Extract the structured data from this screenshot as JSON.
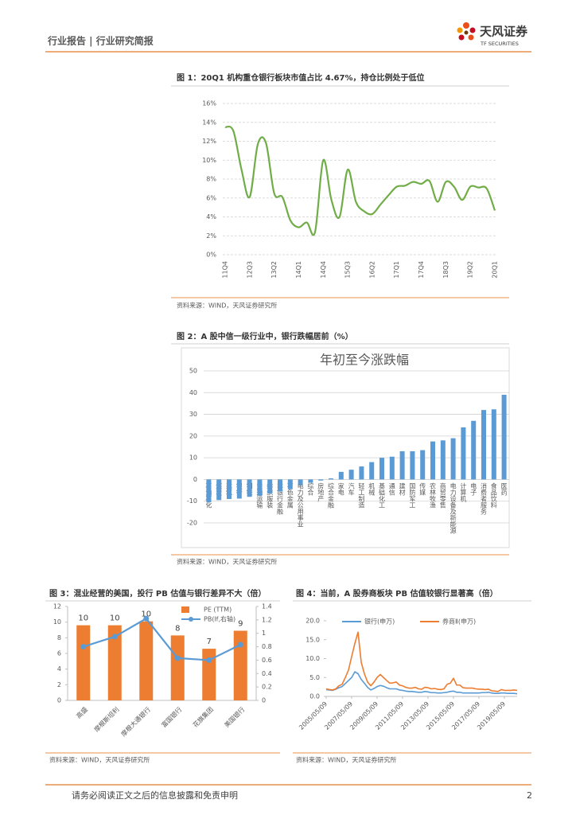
{
  "header": {
    "left": "行业报告 | 行业研究简报",
    "logo": "天风证券",
    "logo_en": "TF SECURITIES"
  },
  "chart_data": [
    {
      "type": "line",
      "caption": "图 1：20Q1 机构重仓银行板块市值占比 4.67%，持仓比例处于低位",
      "source": "资料来源：WIND，天风证券研究所",
      "categories": [
        "11Q4",
        null,
        null,
        "12Q3",
        null,
        null,
        "13Q2",
        null,
        null,
        "14Q1",
        null,
        null,
        "14Q4",
        null,
        null,
        "15Q3",
        null,
        null,
        "16Q2",
        null,
        null,
        "17Q1",
        null,
        null,
        "17Q4",
        null,
        null,
        "18Q3",
        null,
        null,
        "19Q2",
        null,
        null,
        "20Q1"
      ],
      "values": [
        13.5,
        13.1,
        9.0,
        6.1,
        11.7,
        11.8,
        6.5,
        6.1,
        3.6,
        2.9,
        3.4,
        2.4,
        10.0,
        5.8,
        4.0,
        9.0,
        5.6,
        4.6,
        4.3,
        5.3,
        6.3,
        7.2,
        7.3,
        7.7,
        7.5,
        7.8,
        5.6,
        7.7,
        7.2,
        5.8,
        7.2,
        7.1,
        7.0,
        4.67
      ],
      "color": "#70ad47",
      "ylim": [
        0,
        16
      ],
      "yticks": [
        {
          "value": 0,
          "label": "0%"
        },
        {
          "value": 2,
          "label": "2%"
        },
        {
          "value": 4,
          "label": "4%"
        },
        {
          "value": 6,
          "label": "6%"
        },
        {
          "value": 8,
          "label": "8%"
        },
        {
          "value": 10,
          "label": "10%"
        },
        {
          "value": 12,
          "label": "12%"
        },
        {
          "value": 14,
          "label": "14%"
        },
        {
          "value": 16,
          "label": "16%"
        }
      ],
      "grid": true
    },
    {
      "type": "bar",
      "caption": "图 2：A 股中信一级行业中，银行跌幅居前（%）",
      "source": "资料来源：WIND，天风证券研究所",
      "title": "年初至今涨跌幅",
      "categories": [
        "石油石化",
        "煤炭",
        "建筑",
        "银行",
        "钢铁",
        "交通运输",
        "纺织服装",
        "非银行金融",
        "有色金属",
        "电力及公用事业",
        "综合",
        "房地产",
        "综合金融",
        "家电",
        "汽车",
        "轻工制造",
        "机械",
        "基础化工",
        "通信",
        "建材",
        "国防军工",
        "传媒",
        "农林牧渔",
        "商贸零售",
        "电力设备及新能源",
        "计算机",
        "电子",
        "消费者服务",
        "食品饮料",
        "医药"
      ],
      "values": [
        -10.5,
        -9.5,
        -9.0,
        -8.8,
        -8.0,
        -7.5,
        -6.5,
        -5.5,
        -4.5,
        -2.5,
        -1.5,
        -0.5,
        0.5,
        3.5,
        4.5,
        6.0,
        8.0,
        10.0,
        10.5,
        13.0,
        13.0,
        13.5,
        17.5,
        18.0,
        19.0,
        24.0,
        27.0,
        32.0,
        32.3,
        39.0
      ],
      "color": "#5b9bd5",
      "ylim": [
        -20,
        50
      ],
      "yticks": [
        -20,
        -10,
        0,
        10,
        20,
        30,
        40,
        50
      ],
      "grid": true
    },
    {
      "type": "bar",
      "caption": "图 3：混业经营的美国，投行 PB 估值与银行差异不大（倍）",
      "source": "资料来源：WIND，天风证券研究所",
      "categories": [
        "高盛",
        "摩根斯坦利",
        "摩根大通银行",
        "富国银行",
        "花旗集团",
        "美国银行"
      ],
      "series": [
        {
          "name": "PE (TTM)",
          "color": "#ed7d31",
          "values": [
            9.6,
            9.6,
            10.1,
            8.3,
            6.6,
            8.9
          ],
          "value_labels": [
            "10",
            "10",
            "10",
            "8",
            "7",
            "9"
          ]
        },
        {
          "name": "PB(lf,右轴)",
          "color": "#5b9bd5",
          "values": [
            0.8,
            0.95,
            1.22,
            0.63,
            0.6,
            0.83
          ],
          "axis": "y2"
        }
      ],
      "ylim": [
        0,
        12
      ],
      "yticks": [
        0,
        2,
        4,
        6,
        8,
        10,
        12
      ],
      "y2lim": [
        0,
        1.4
      ],
      "y2ticks": [
        0,
        0.2,
        0.4,
        0.6,
        0.8,
        1,
        1.2,
        1.4
      ],
      "grid": false
    },
    {
      "type": "line",
      "caption": "图 4：当前，A 股券商板块 PB 估值较银行显著高（倍）",
      "source": "资料来源：WIND，天风证券研究所",
      "x": [
        "2005/05/09",
        "2005/08/09",
        "2005/11/09",
        "2006/02/09",
        "2006/05/09",
        "2006/08/09",
        "2006/11/09",
        "2007/02/09",
        "2007/05/09",
        "2007/08/09",
        "2007/11/09",
        "2008/02/09",
        "2008/05/09",
        "2008/08/09",
        "2008/11/09",
        "2009/02/09",
        "2009/05/09",
        "2009/08/09",
        "2009/11/09",
        "2010/02/09",
        "2010/05/09",
        "2010/08/09",
        "2010/11/09",
        "2011/02/09",
        "2011/05/09",
        "2011/08/09",
        "2011/11/09",
        "2012/02/09",
        "2012/05/09",
        "2012/08/09",
        "2012/11/09",
        "2013/02/09",
        "2013/05/09",
        "2013/08/09",
        "2013/11/09",
        "2014/02/09",
        "2014/05/09",
        "2014/08/09",
        "2014/11/09",
        "2015/02/09",
        "2015/05/09",
        "2015/08/09",
        "2015/11/09",
        "2016/02/09",
        "2016/05/09",
        "2016/08/09",
        "2016/11/09",
        "2017/02/09",
        "2017/05/09",
        "2017/08/09",
        "2017/11/09",
        "2018/02/09",
        "2018/05/09",
        "2018/08/09",
        "2018/11/09",
        "2019/02/09",
        "2019/05/09",
        "2019/08/09",
        "2019/11/09",
        "2020/02/09",
        "2020/05/09"
      ],
      "series": [
        {
          "name": "银行(申万)",
          "color": "#5b9bd5",
          "values": [
            1.8,
            1.7,
            1.6,
            1.9,
            2.3,
            2.6,
            3.4,
            4.2,
            5.0,
            6.5,
            6.0,
            4.5,
            3.5,
            2.4,
            1.7,
            2.1,
            2.6,
            2.9,
            2.7,
            2.3,
            2.0,
            2.0,
            2.0,
            1.7,
            1.6,
            1.4,
            1.3,
            1.3,
            1.2,
            1.1,
            1.1,
            1.3,
            1.2,
            1.0,
            1.0,
            0.9,
            0.9,
            1.0,
            1.1,
            1.3,
            1.4,
            1.1,
            1.1,
            0.9,
            0.9,
            0.9,
            0.9,
            0.9,
            0.9,
            1.0,
            1.0,
            1.1,
            0.9,
            0.8,
            0.8,
            0.9,
            0.9,
            0.8,
            0.8,
            0.8,
            0.7
          ]
        },
        {
          "name": "券商Ⅱ(申万)",
          "color": "#ed7d31",
          "values": [
            2.0,
            1.8,
            1.7,
            2.0,
            2.8,
            3.2,
            5.0,
            7.0,
            10.5,
            14.0,
            17.0,
            9.0,
            6.0,
            3.8,
            2.8,
            3.8,
            5.0,
            5.8,
            5.0,
            4.2,
            3.5,
            3.6,
            3.8,
            3.0,
            2.8,
            2.4,
            2.2,
            2.2,
            2.4,
            2.0,
            1.9,
            2.4,
            2.3,
            2.0,
            2.1,
            1.9,
            1.8,
            2.0,
            3.2,
            3.5,
            4.8,
            3.0,
            3.0,
            2.3,
            2.2,
            2.2,
            2.2,
            2.0,
            1.9,
            1.9,
            1.8,
            1.9,
            1.5,
            1.4,
            1.3,
            1.8,
            1.6,
            1.6,
            1.6,
            1.7,
            1.6
          ]
        }
      ],
      "xlim": [
        "2005/05/09",
        "2020/05/09"
      ],
      "xticks": [
        "2005/05/09",
        "2007/05/09",
        "2009/05/09",
        "2011/05/09",
        "2013/05/09",
        "2015/05/09",
        "2017/05/09",
        "2019/05/09"
      ],
      "ylim": [
        0,
        20
      ],
      "yticks": [
        {
          "value": 0,
          "label": "0.0"
        },
        {
          "value": 5,
          "label": "5.0"
        },
        {
          "value": 10,
          "label": "10.0"
        },
        {
          "value": 15,
          "label": "15.0"
        },
        {
          "value": 20,
          "label": "20.0"
        }
      ],
      "grid": false
    }
  ],
  "footer": {
    "disclaimer": "请务必阅读正文之后的信息披露和免责申明",
    "page": 2
  }
}
